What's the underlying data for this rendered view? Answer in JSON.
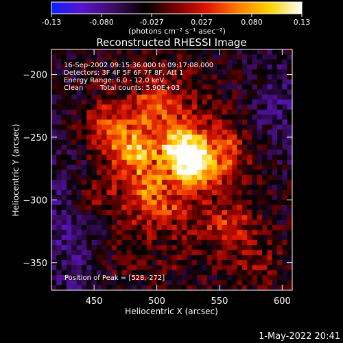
{
  "chart_data": {
    "type": "heatmap",
    "title": "Reconstructed RHESSI Image",
    "xlabel": "Heliocentric X (arcsec)",
    "ylabel": "Heliocentric Y (arcsec)",
    "xlim": [
      416,
      608
    ],
    "ylim": [
      -372,
      -180
    ],
    "xticks": [
      450,
      500,
      550,
      600
    ],
    "yticks": [
      -200,
      -250,
      -300,
      -350
    ],
    "grid": false,
    "colorbar": {
      "position": "top",
      "min": -0.13,
      "max": 0.13,
      "ticks": [
        "-0.13",
        "-0.080",
        "-0.027",
        "0.027",
        "0.080",
        "0.13"
      ],
      "label": "(photons cm⁻² s⁻¹ asec⁻²)",
      "colors": [
        "#1020ff",
        "#5a14c8",
        "#3c0c60",
        "#000000",
        "#7a0000",
        "#e01800",
        "#ff8000",
        "#ffd400",
        "#ffffff"
      ]
    },
    "annotations": {
      "time_range": "16-Sep-2002 09:15:36.000 to 09:17:08.000",
      "detectors": "Detectors: 3F 4F 5F 6F 7F 8F, Att 1",
      "energy": "Energy Range: 6.0 - 12.0 keV",
      "method": "Clean",
      "counts": "Total counts: 5.90E+03",
      "peak": "Position of Peak = [528,-272]"
    },
    "sources": [
      {
        "x": 528,
        "y": -272,
        "value": 0.13
      },
      {
        "x": 520,
        "y": -258,
        "value": 0.11
      },
      {
        "x": 482,
        "y": -262,
        "value": 0.08
      },
      {
        "x": 462,
        "y": -242,
        "value": 0.06
      },
      {
        "x": 553,
        "y": -262,
        "value": 0.06
      },
      {
        "x": 495,
        "y": -300,
        "value": 0.055
      },
      {
        "x": 500,
        "y": -225,
        "value": 0.05
      },
      {
        "x": 560,
        "y": -320,
        "value": 0.045
      },
      {
        "x": 450,
        "y": -300,
        "value": 0.04
      },
      {
        "x": 580,
        "y": -350,
        "value": 0.035
      },
      {
        "x": 470,
        "y": -345,
        "value": 0.03
      }
    ]
  },
  "footer": {
    "timestamp": "1-May-2022 20:41"
  }
}
